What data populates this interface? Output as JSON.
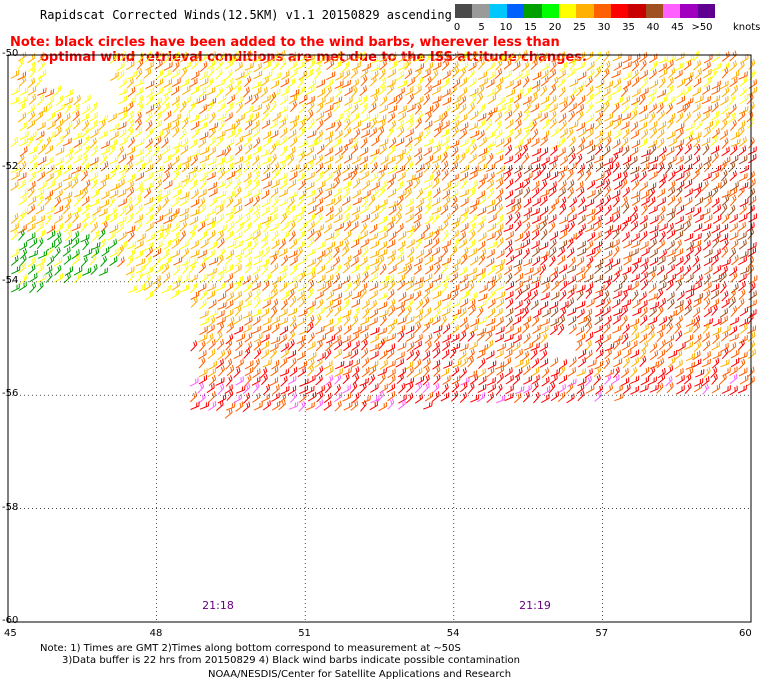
{
  "header": {
    "title": "Rapidscat Corrected Winds(12.5KM) v1.1 20150829 ascending"
  },
  "note": {
    "line1": "Note: black circles have been added to the wind barbs, wherever less than",
    "line2": "optimal wind retrieval conditions are met due to the ISS attitude changes."
  },
  "colorbar": {
    "labels": [
      "0",
      "5",
      "10",
      "15",
      "20",
      "25",
      "30",
      "35",
      "40",
      "45",
      ">50"
    ],
    "unit": "knots",
    "colors": [
      "#4a4a4a",
      "#9a9a9a",
      "#00c8ff",
      "#0060ff",
      "#00a000",
      "#00ff00",
      "#ffff00",
      "#ffb000",
      "#ff6000",
      "#ff0000",
      "#c80000",
      "#a05020",
      "#ff60ff",
      "#a000c0",
      "#600090"
    ]
  },
  "map": {
    "lon_labels": [
      "45",
      "48",
      "51",
      "54",
      "57",
      "60"
    ],
    "lat_labels": [
      "-50",
      "-52",
      "-54",
      "-56",
      "-58",
      "-60"
    ],
    "lon_range": [
      45,
      60
    ],
    "lat_range": [
      -60,
      -50
    ],
    "grid": true,
    "times": [
      {
        "label": "21:18",
        "lon": 49.0
      },
      {
        "label": "21:19",
        "lon": 55.4
      }
    ]
  },
  "footer": {
    "line1": "Note: 1) Times are GMT 2)Times along bottom correspond to measurement at ~50S",
    "line2": "3)Data buffer is 22 hrs from 20150829 4) Black wind barbs indicate possible contamination",
    "line3": "NOAA/NESDIS/Center for Satellite Applications and Research"
  }
}
